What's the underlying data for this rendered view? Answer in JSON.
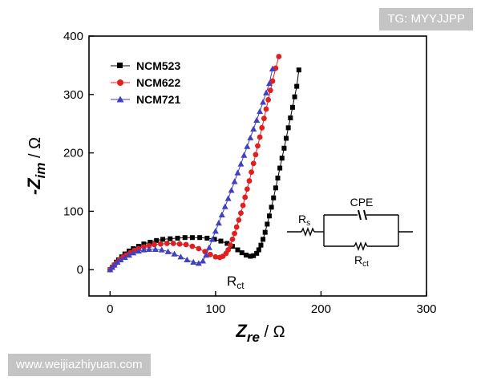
{
  "watermarks": {
    "top_right": "TG: MYYJJPP",
    "bottom_left": "www.weijiazhiyuan.com"
  },
  "chart_data": {
    "type": "scatter",
    "title": "",
    "xlabel": {
      "main": "Z",
      "sub": "re",
      "unit": " / Ω"
    },
    "ylabel": {
      "main": "-Z",
      "sub": "im",
      "unit": " / Ω"
    },
    "xlim": [
      -20,
      300
    ],
    "ylim": [
      -45,
      400
    ],
    "xticks": [
      0,
      100,
      200,
      300
    ],
    "yticks": [
      0,
      100,
      200,
      300,
      400
    ],
    "grid": false,
    "legend_position": "top-left",
    "series": [
      {
        "name": "NCM523",
        "color": "#000000",
        "marker": "square",
        "x": [
          0,
          2,
          4,
          6,
          8,
          11,
          14,
          18,
          22,
          27,
          32,
          38,
          44,
          50,
          57,
          64,
          71,
          78,
          85,
          92,
          99,
          105,
          111,
          116,
          121,
          125,
          129,
          133,
          136,
          139,
          141,
          143,
          145,
          147,
          149,
          151,
          153,
          155,
          157,
          159,
          161,
          163,
          165,
          167,
          169,
          171,
          173,
          175,
          177,
          179
        ],
        "y": [
          0,
          4,
          8,
          13,
          17,
          22,
          27,
          32,
          36,
          40,
          44,
          47,
          50,
          52,
          53,
          54,
          55,
          55,
          55,
          54,
          52,
          49,
          45,
          40,
          34,
          29,
          25,
          23,
          24,
          28,
          34,
          42,
          52,
          64,
          78,
          92,
          107,
          123,
          140,
          157,
          174,
          191,
          208,
          225,
          243,
          260,
          278,
          296,
          314,
          342
        ]
      },
      {
        "name": "NCM622",
        "color": "#e02020",
        "marker": "circle",
        "x": [
          0,
          2,
          4,
          6,
          9,
          12,
          15,
          19,
          23,
          27,
          32,
          37,
          42,
          48,
          54,
          60,
          66,
          72,
          78,
          84,
          90,
          95,
          100,
          104,
          107,
          110,
          112,
          114,
          116,
          118,
          120,
          122,
          124,
          126,
          128,
          130,
          132,
          134,
          136,
          138,
          140,
          142,
          144,
          146,
          148,
          150,
          152,
          154,
          157,
          160
        ],
        "y": [
          0,
          4,
          8,
          12,
          17,
          21,
          25,
          29,
          33,
          36,
          39,
          41,
          43,
          44,
          45,
          45,
          44,
          43,
          40,
          36,
          31,
          26,
          22,
          21,
          23,
          28,
          34,
          42,
          52,
          62,
          73,
          85,
          97,
          110,
          124,
          138,
          152,
          167,
          182,
          197,
          212,
          227,
          243,
          259,
          275,
          291,
          307,
          323,
          345,
          365
        ]
      },
      {
        "name": "NCM721",
        "color": "#4040c0",
        "marker": "triangle",
        "x": [
          0,
          2,
          4,
          7,
          10,
          14,
          18,
          22,
          27,
          32,
          37,
          43,
          49,
          55,
          61,
          67,
          73,
          79,
          84,
          88,
          91,
          94,
          97,
          100,
          103,
          106,
          109,
          112,
          115,
          118,
          121,
          124,
          127,
          130,
          133,
          136,
          139,
          142,
          145,
          148,
          151,
          154
        ],
        "y": [
          0,
          4,
          8,
          13,
          17,
          21,
          25,
          29,
          32,
          34,
          35,
          35,
          34,
          31,
          27,
          22,
          17,
          13,
          11,
          15,
          25,
          38,
          52,
          66,
          80,
          94,
          108,
          122,
          136,
          151,
          166,
          181,
          196,
          211,
          226,
          241,
          256,
          271,
          287,
          303,
          319,
          344
        ]
      }
    ],
    "annotations": {
      "rct_main": "R",
      "rct_sub": "ct"
    },
    "inset_circuit": {
      "cpe_label": "CPE",
      "rs_main": "R",
      "rs_sub": "s",
      "rct_main": "R",
      "rct_sub": "ct"
    }
  }
}
